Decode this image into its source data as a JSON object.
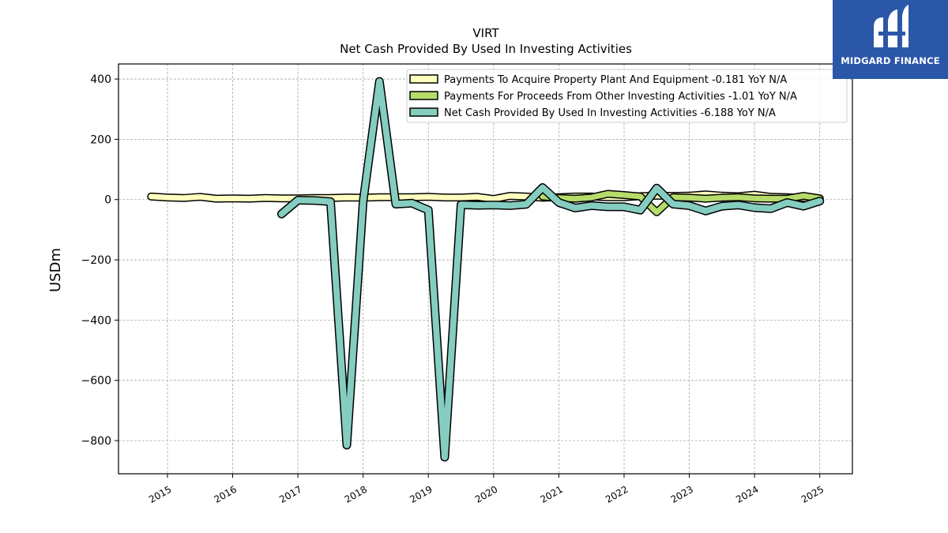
{
  "chart_data": {
    "type": "line",
    "title": "VIRT",
    "subtitle": "Net Cash Provided By Used In Investing Activities",
    "xlabel": "",
    "ylabel": "USDm",
    "xlim": [
      2014.25,
      2025.5
    ],
    "ylim": [
      -910,
      450
    ],
    "x_ticks": [
      {
        "label": "2015",
        "x": 2015.0
      },
      {
        "label": "2016",
        "x": 2016.0
      },
      {
        "label": "2017",
        "x": 2017.0
      },
      {
        "label": "2018",
        "x": 2018.0
      },
      {
        "label": "2019",
        "x": 2019.0
      },
      {
        "label": "2020",
        "x": 2020.0
      },
      {
        "label": "2021",
        "x": 2021.0
      },
      {
        "label": "2022",
        "x": 2022.0
      },
      {
        "label": "2023",
        "x": 2023.0
      },
      {
        "label": "2024",
        "x": 2024.0
      },
      {
        "label": "2025",
        "x": 2025.0
      }
    ],
    "y_ticks": [
      {
        "label": "400",
        "y": 400
      },
      {
        "label": "200",
        "y": 200
      },
      {
        "label": "0",
        "y": 0
      },
      {
        "label": "−200",
        "y": -200
      },
      {
        "label": "−400",
        "y": -400
      },
      {
        "label": "−600",
        "y": -600
      },
      {
        "label": "−800",
        "y": -800
      }
    ],
    "grid": true,
    "legend_position": "top-right",
    "series": [
      {
        "name": "Payments To Acquire Property Plant And Equipment  -0.181 YoY N/A",
        "color": "#ffffbf",
        "x": [
          2014.75,
          2015.0,
          2015.25,
          2015.5,
          2015.75,
          2016.0,
          2016.25,
          2016.5,
          2016.75,
          2017.0,
          2017.25,
          2017.5,
          2017.75,
          2018.0,
          2018.25,
          2018.5,
          2018.75,
          2019.0,
          2019.25,
          2019.5,
          2019.75,
          2020.0,
          2020.25,
          2020.5,
          2020.75,
          2021.0,
          2021.25,
          2021.5,
          2021.75,
          2022.0,
          2022.25,
          2022.5,
          2022.75,
          2023.0,
          2023.25,
          2023.5,
          2023.75,
          2024.0,
          2024.25,
          2024.5,
          2024.75,
          2025.0
        ],
        "y": [
          10,
          7,
          5,
          9,
          3,
          4,
          3,
          5,
          4,
          4,
          5,
          5,
          7,
          6,
          8,
          8,
          8,
          9,
          7,
          7,
          9,
          2,
          12,
          10,
          6,
          8,
          10,
          10,
          8,
          8,
          11,
          13,
          12,
          13,
          17,
          13,
          11,
          16,
          9,
          8,
          5,
          4
        ]
      },
      {
        "name": "Payments For Proceeds From Other Investing Activities  -1.01 YoY N/A",
        "color": "#b5dc6b",
        "x": [
          2020.75,
          2021.0,
          2021.25,
          2021.5,
          2021.75,
          2022.0,
          2022.25,
          2022.5,
          2022.75,
          2023.0,
          2023.25,
          2023.5,
          2023.75,
          2024.0,
          2024.25,
          2024.5,
          2024.75,
          2025.0
        ],
        "y": [
          10,
          5,
          3,
          7,
          19,
          15,
          10,
          -42,
          8,
          6,
          3,
          6,
          8,
          4,
          3,
          3,
          12,
          4
        ]
      },
      {
        "name": "Net Cash Provided By Used In Investing Activities  -6.188 YoY N/A",
        "color": "#84cdc0",
        "x": [
          2016.75,
          2017.0,
          2017.25,
          2017.5,
          2017.75,
          2018.0,
          2018.25,
          2018.5,
          2018.75,
          2019.0,
          2019.25,
          2019.5,
          2019.75,
          2020.0,
          2020.25,
          2020.5,
          2020.75,
          2021.0,
          2021.25,
          2021.5,
          2021.75,
          2022.0,
          2022.25,
          2022.5,
          2022.75,
          2023.0,
          2023.25,
          2023.5,
          2023.75,
          2024.0,
          2024.25,
          2024.5,
          2024.75,
          2025.0
        ],
        "y": [
          -48,
          -2,
          -3,
          -7,
          -815,
          -5,
          392,
          -15,
          -12,
          -35,
          -855,
          -17,
          -19,
          -18,
          -20,
          -16,
          40,
          -10,
          -28,
          -20,
          -24,
          -24,
          -35,
          38,
          -15,
          -20,
          -38,
          -22,
          -18,
          -27,
          -30,
          -10,
          -22,
          -5
        ]
      }
    ]
  },
  "logo": {
    "text": "MIDGARD FINANCE",
    "icon": "midgard-m-logo-icon",
    "background": "#2b57a8"
  }
}
